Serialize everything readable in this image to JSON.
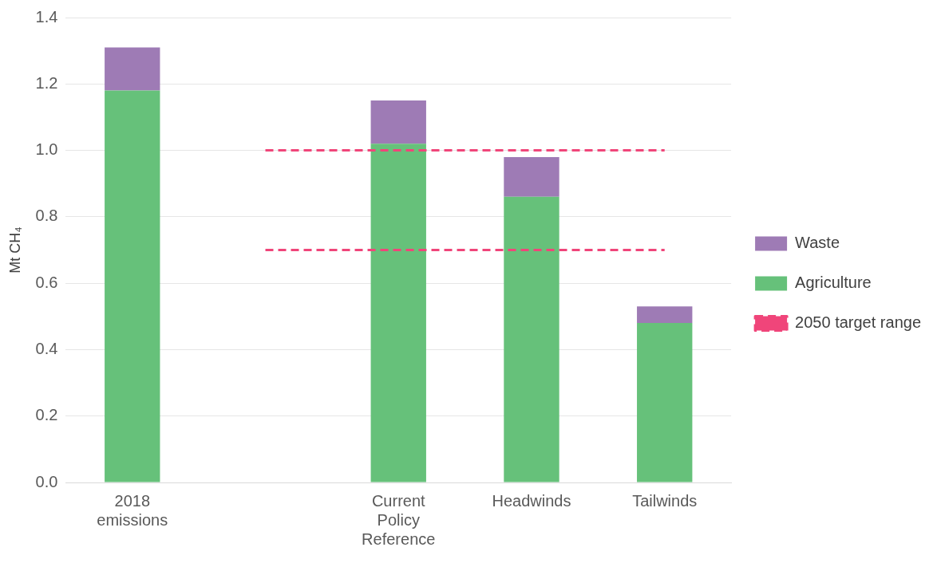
{
  "chart_data": {
    "type": "bar",
    "stacked": true,
    "ylabel": "Mt CH₄",
    "categories": [
      "2018 emissions",
      null,
      "Current Policy Reference",
      "Headwinds",
      "Tailwinds"
    ],
    "series": [
      {
        "name": "Agriculture",
        "color": "#66c17a",
        "values": [
          1.18,
          null,
          1.02,
          0.86,
          0.48
        ]
      },
      {
        "name": "Waste",
        "color": "#9e7bb5",
        "values": [
          0.13,
          null,
          0.13,
          0.12,
          0.05
        ]
      },
      {
        "name": "2050 target range",
        "type": "line",
        "color": "#f0457a",
        "line_style": "dashed",
        "marker": "none",
        "values": [
          null,
          1.0,
          1.0,
          1.0,
          1.0
        ]
      },
      {
        "type": "line",
        "color": "#f0457a",
        "line_style": "dashed",
        "marker": "none",
        "values": [
          null,
          0.7,
          0.7,
          0.7,
          0.7
        ]
      }
    ],
    "ylim": [
      0,
      1.4
    ],
    "yticks": [
      {
        "value": 0,
        "label": "0.0"
      },
      {
        "value": 0.2,
        "label": "0.2"
      },
      {
        "value": 0.4,
        "label": "0.4"
      },
      {
        "value": 0.6,
        "label": "0.6"
      },
      {
        "value": 0.8,
        "label": "0.8"
      },
      {
        "value": 1.0,
        "label": "1.0"
      },
      {
        "value": 1.2,
        "label": "1.2"
      },
      {
        "value": 1.4,
        "label": "1.4"
      }
    ],
    "grid": "y",
    "legend": "right"
  }
}
